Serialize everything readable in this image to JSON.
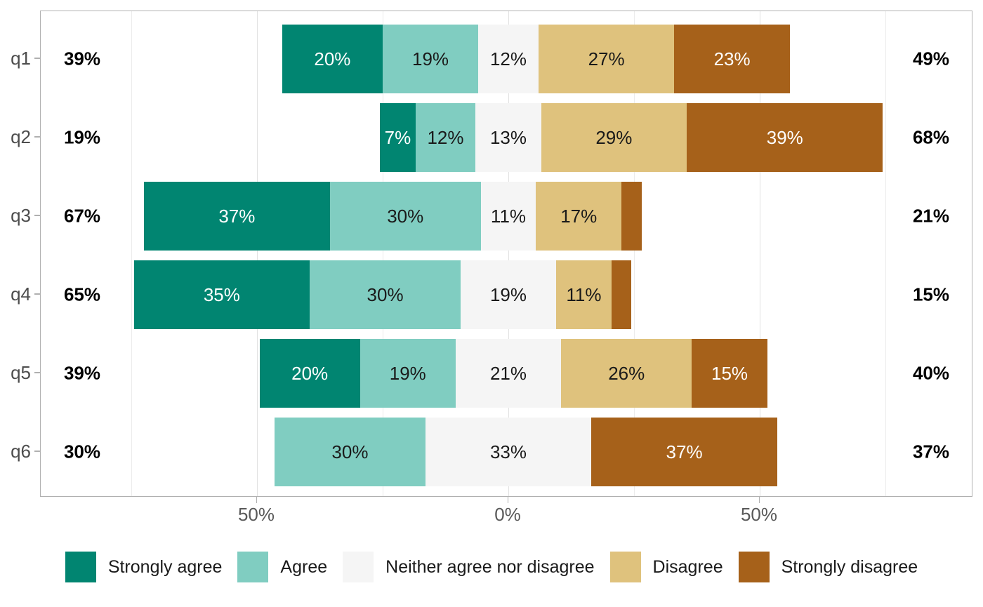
{
  "chart_data": {
    "type": "diverging_stacked_bar",
    "title": "",
    "orientation": "horizontal",
    "categories": [
      "q1",
      "q2",
      "q3",
      "q4",
      "q5",
      "q6"
    ],
    "levels": [
      {
        "name": "Strongly agree",
        "color": "#018571",
        "label_color": "#ffffff"
      },
      {
        "name": "Agree",
        "color": "#80CDC1",
        "label_color": "#1a1a1a"
      },
      {
        "name": "Neither agree nor disagree",
        "color": "#F5F5F5",
        "label_color": "#1a1a1a"
      },
      {
        "name": "Disagree",
        "color": "#DFC27D",
        "label_color": "#1a1a1a"
      },
      {
        "name": "Strongly disagree",
        "color": "#A6611A",
        "label_color": "#ffffff"
      }
    ],
    "rows": [
      {
        "question": "q1",
        "values": [
          20,
          19,
          12,
          27,
          23
        ],
        "labels": [
          "20%",
          "19%",
          "12%",
          "27%",
          "23%"
        ],
        "left_total": "39%",
        "right_total": "49%"
      },
      {
        "question": "q2",
        "values": [
          7,
          12,
          13,
          29,
          39
        ],
        "labels": [
          "7%",
          "12%",
          "13%",
          "29%",
          "39%"
        ],
        "left_total": "19%",
        "right_total": "68%"
      },
      {
        "question": "q3",
        "values": [
          37,
          30,
          11,
          17,
          4
        ],
        "labels": [
          "37%",
          "30%",
          "11%",
          "17%",
          ""
        ],
        "left_total": "67%",
        "right_total": "21%"
      },
      {
        "question": "q4",
        "values": [
          35,
          30,
          19,
          11,
          4
        ],
        "labels": [
          "35%",
          "30%",
          "19%",
          "11%",
          ""
        ],
        "left_total": "65%",
        "right_total": "15%"
      },
      {
        "question": "q5",
        "values": [
          20,
          19,
          21,
          26,
          15
        ],
        "labels": [
          "20%",
          "19%",
          "21%",
          "26%",
          "15%"
        ],
        "left_total": "39%",
        "right_total": "40%"
      },
      {
        "question": "q6",
        "values": [
          0,
          30,
          33,
          0,
          37
        ],
        "labels": [
          "",
          "30%",
          "33%",
          "",
          "37%"
        ],
        "left_total": "30%",
        "right_total": "37%"
      }
    ],
    "neutral_centered": true,
    "x_axis": {
      "tick_labels": [
        "50%",
        "0%",
        "50%"
      ],
      "tick_positions": [
        -50,
        0,
        50
      ],
      "major_gridlines": [
        -50,
        0,
        50
      ],
      "minor_gridlines": [
        -75,
        -25,
        25,
        75
      ],
      "range": [
        -93,
        92.5
      ],
      "grid": true
    },
    "legend": {
      "position": "bottom",
      "entries": [
        "Strongly agree",
        "Agree",
        "Neither agree nor disagree",
        "Disagree",
        "Strongly disagree"
      ]
    }
  },
  "colors": {
    "background": "#ffffff",
    "panel_border": "#b0b0b0",
    "gridline_major": "#e2e2e2",
    "gridline_minor": "#ececec",
    "axis_text": "#595959",
    "question_label": "#4d4d4d",
    "total_label": "#000000",
    "tick_mark": "#b0b0b0"
  }
}
